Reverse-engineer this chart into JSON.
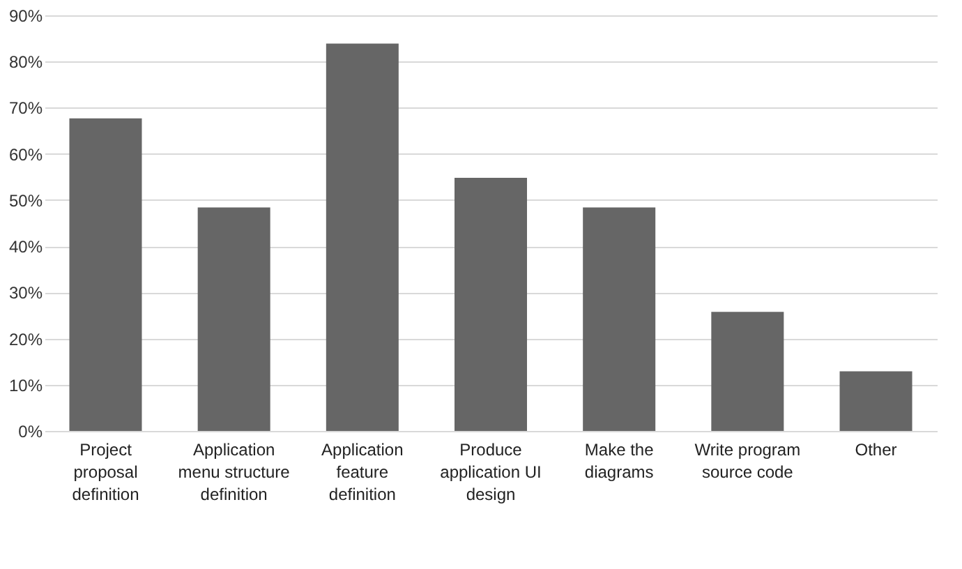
{
  "chart_data": {
    "type": "bar",
    "categories": [
      "Project proposal definition",
      "Application menu structure definition",
      "Application feature definition",
      "Produce application UI design",
      "Make the diagrams",
      "Write program source code",
      "Other"
    ],
    "values": [
      67.7,
      48.4,
      83.9,
      54.8,
      48.4,
      25.8,
      12.9
    ],
    "color": "#666666",
    "ylim": [
      0,
      90
    ],
    "yticks": [
      {
        "value": 0,
        "label": "0%"
      },
      {
        "value": 10,
        "label": "10%"
      },
      {
        "value": 20,
        "label": "20%"
      },
      {
        "value": 30,
        "label": "30%"
      },
      {
        "value": 40,
        "label": "40%"
      },
      {
        "value": 50,
        "label": "50%"
      },
      {
        "value": 60,
        "label": "60%"
      },
      {
        "value": 70,
        "label": "70%"
      },
      {
        "value": 80,
        "label": "80%"
      },
      {
        "value": 90,
        "label": "90%"
      }
    ],
    "grid": "y"
  }
}
